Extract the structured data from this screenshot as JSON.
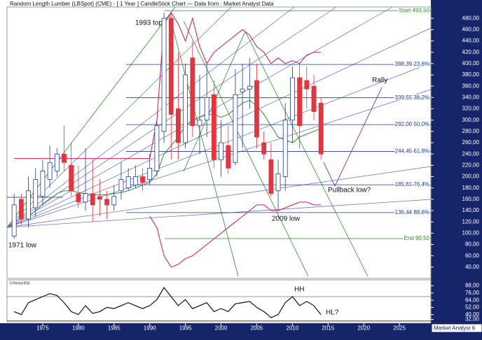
{
  "chart_data": {
    "type": "candlestick",
    "title": "Random Length Lumber (LBSpot) (CME) - [ 1 Year ] CandleStick Chart — Data from : Market Analyst Data",
    "x": [
      1971,
      1972,
      1973,
      1974,
      1975,
      1976,
      1977,
      1978,
      1979,
      1980,
      1981,
      1982,
      1983,
      1984,
      1985,
      1986,
      1987,
      1988,
      1989,
      1990,
      1991,
      1992,
      1993,
      1994,
      1995,
      1996,
      1997,
      1998,
      1999,
      2000,
      2001,
      2002,
      2003,
      2004,
      2005,
      2006,
      2007,
      2008,
      2009,
      2010,
      2011,
      2012,
      2013,
      2014
    ],
    "open": [
      95,
      160,
      125,
      145,
      165,
      195,
      210,
      240,
      220,
      170,
      155,
      170,
      165,
      160,
      150,
      175,
      180,
      185,
      200,
      195,
      210,
      280,
      480,
      320,
      260,
      410,
      290,
      300,
      345,
      230,
      255,
      225,
      350,
      355,
      370,
      260,
      230,
      175,
      200,
      300,
      375,
      370,
      360,
      330
    ],
    "high": [
      170,
      170,
      200,
      215,
      230,
      255,
      250,
      290,
      260,
      220,
      250,
      230,
      195,
      175,
      185,
      225,
      215,
      220,
      215,
      240,
      300,
      490,
      490,
      420,
      400,
      440,
      380,
      400,
      370,
      300,
      290,
      390,
      400,
      410,
      400,
      280,
      260,
      230,
      330,
      395,
      400,
      395,
      380,
      340
    ],
    "low": [
      90,
      115,
      110,
      130,
      150,
      180,
      200,
      210,
      165,
      145,
      140,
      120,
      130,
      125,
      140,
      160,
      175,
      180,
      175,
      185,
      200,
      260,
      230,
      230,
      250,
      270,
      240,
      270,
      215,
      200,
      205,
      220,
      250,
      320,
      250,
      230,
      165,
      140,
      175,
      260,
      250,
      320,
      300,
      230
    ],
    "close": [
      150,
      125,
      175,
      195,
      210,
      225,
      240,
      225,
      175,
      155,
      170,
      150,
      160,
      150,
      165,
      195,
      200,
      200,
      190,
      215,
      290,
      480,
      310,
      260,
      380,
      290,
      300,
      340,
      230,
      260,
      215,
      345,
      355,
      360,
      270,
      240,
      170,
      205,
      300,
      375,
      290,
      355,
      315,
      240
    ],
    "up_color": "#1f3a93",
    "down_color": "#e8323c",
    "xlim": [
      1970,
      2029.4
    ],
    "xticks": [
      1975,
      1980,
      1985,
      1990,
      1995,
      2000,
      2005,
      2010,
      2015,
      2020,
      2025
    ],
    "ylim": [
      20,
      500
    ],
    "yticks": [
      {
        "value": 480,
        "label": "480,00"
      },
      {
        "value": 460,
        "label": "460,00"
      },
      {
        "value": 440,
        "label": "440,00"
      },
      {
        "value": 420,
        "label": "420,00"
      },
      {
        "value": 400,
        "label": "400,00"
      },
      {
        "value": 380,
        "label": "380,00"
      },
      {
        "value": 360,
        "label": "360,00"
      },
      {
        "value": 340,
        "label": "340,00"
      },
      {
        "value": 320,
        "label": "320,00"
      },
      {
        "value": 300,
        "label": "300,00"
      },
      {
        "value": 280,
        "label": "280,00"
      },
      {
        "value": 260,
        "label": "260,00"
      },
      {
        "value": 240,
        "label": "240,00"
      },
      {
        "value": 220,
        "label": "220,00"
      },
      {
        "value": 200,
        "label": "200,00"
      },
      {
        "value": 180,
        "label": "180,00"
      },
      {
        "value": 160,
        "label": "160,00"
      },
      {
        "value": 140,
        "label": "140,00"
      },
      {
        "value": 120,
        "label": "120,00"
      },
      {
        "value": 100,
        "label": "100,00"
      },
      {
        "value": 80,
        "label": "80,00"
      },
      {
        "value": 60,
        "label": "60,00"
      },
      {
        "value": 40,
        "label": "40,00"
      }
    ],
    "levels": [
      {
        "value": 493.5,
        "label": "Start 493,50",
        "color": "#2e8b2e"
      },
      {
        "value": 398.39,
        "label": "398,39 23,6%",
        "color": "#1f3a93"
      },
      {
        "value": 339.55,
        "label": "339,55 38,2%",
        "color": "#1f3a93"
      },
      {
        "value": 292,
        "label": "292,00 50,0%",
        "color": "#1f3a93"
      },
      {
        "value": 244.45,
        "label": "244,45 61,8%",
        "color": "#1f3a93"
      },
      {
        "value": 185.61,
        "label": "185,61 76,4%",
        "color": "#1f3a93"
      },
      {
        "value": 136.44,
        "label": "136,44 88,6%",
        "color": "#1f3a93"
      },
      {
        "value": 90.5,
        "label": "End 90,50",
        "color": "#2e8b2e"
      }
    ],
    "overlays": [
      {
        "color": "#2e8b2e",
        "values": [
          null,
          null,
          130,
          140,
          150,
          160,
          170,
          175,
          175,
          172,
          170,
          168,
          168,
          168,
          170,
          172,
          175,
          180,
          185,
          190,
          205,
          240,
          255,
          270,
          290,
          300,
          305,
          310,
          310,
          305,
          310,
          320,
          330,
          335,
          325,
          310,
          290,
          270,
          265,
          260,
          270,
          275,
          280,
          285
        ]
      },
      {
        "color": "#d2145a",
        "values": [
          232,
          232,
          232,
          232,
          232,
          232,
          232,
          232,
          232,
          232,
          232,
          232,
          232,
          232,
          232,
          232,
          232,
          232,
          232,
          232,
          300,
          470,
          490,
          470,
          440,
          480,
          430,
          400,
          420,
          430,
          440,
          450,
          460,
          450,
          430,
          420,
          400,
          410,
          400,
          405,
          400,
          415,
          420,
          420
        ]
      },
      {
        "color": "#d2145a",
        "values": [
          null,
          null,
          null,
          null,
          null,
          null,
          null,
          null,
          null,
          null,
          null,
          null,
          null,
          null,
          null,
          null,
          null,
          null,
          null,
          130,
          110,
          60,
          40,
          45,
          55,
          60,
          70,
          80,
          90,
          100,
          110,
          120,
          130,
          140,
          150,
          150,
          140,
          140,
          145,
          150,
          155,
          155,
          150,
          150
        ]
      }
    ],
    "rsi": {
      "label": "5 Period RSI",
      "values": [
        45,
        40,
        60,
        65,
        70,
        75,
        72,
        60,
        45,
        40,
        55,
        42,
        45,
        52,
        50,
        55,
        60,
        55,
        50,
        55,
        65,
        85,
        70,
        55,
        65,
        50,
        55,
        60,
        45,
        50,
        45,
        58,
        60,
        62,
        52,
        45,
        35,
        40,
        60,
        70,
        55,
        62,
        55,
        40
      ],
      "color": "#111111",
      "ylim": [
        28,
        98
      ],
      "yticks": [
        {
          "value": 88,
          "label": "88,00"
        },
        {
          "value": 76,
          "label": "76,00"
        },
        {
          "value": 64,
          "label": "64,00"
        },
        {
          "value": 52,
          "label": "52,00"
        },
        {
          "value": 40,
          "label": "40,00"
        },
        {
          "value": 32,
          "label": "32,00"
        }
      ],
      "levels": [
        70,
        30
      ]
    },
    "annotations": [
      "1993 top",
      "1971 low",
      "2009 low",
      "Rally",
      "Pullback low?",
      "HH",
      "HL?"
    ],
    "footer": "Market Analyst 6"
  }
}
